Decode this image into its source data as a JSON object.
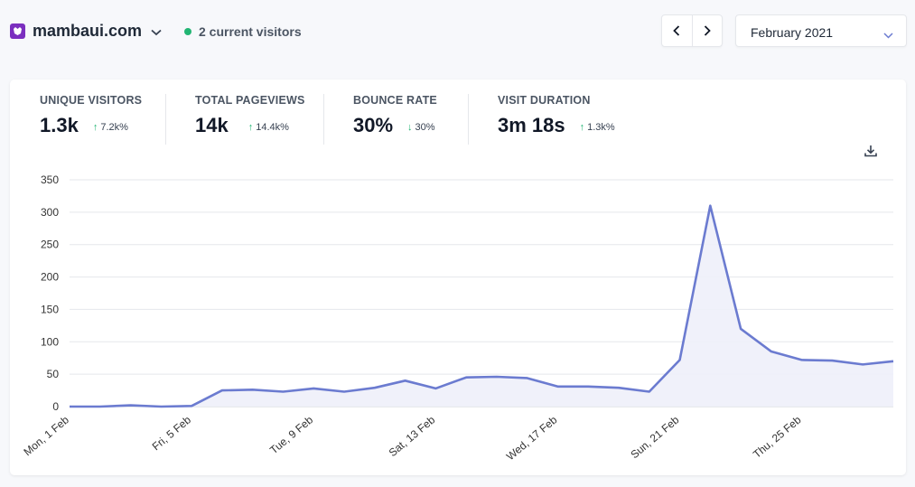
{
  "header": {
    "site_name": "mambaui.com",
    "current_visitors": "2 current visitors",
    "date_range": "February 2021"
  },
  "stats": [
    {
      "label": "UNIQUE VISITORS",
      "value": "1.3k",
      "change": "7.2k%",
      "direction": "up"
    },
    {
      "label": "TOTAL PAGEVIEWS",
      "value": "14k",
      "change": "14.4k%",
      "direction": "up"
    },
    {
      "label": "BOUNCE RATE",
      "value": "30%",
      "change": "30%",
      "direction": "down"
    },
    {
      "label": "VISIT DURATION",
      "value": "3m 18s",
      "change": "1.3k%",
      "direction": "up"
    }
  ],
  "colors": {
    "accent": "#6b7bd0",
    "fill": "#eef0fa",
    "positive": "#22b573",
    "brand": "#7b2fbf"
  },
  "icons": [
    "logo-icon",
    "chevron-down-icon",
    "chevron-left-icon",
    "chevron-right-icon",
    "download-icon"
  ],
  "chart_data": {
    "type": "area",
    "title": "",
    "xlabel": "",
    "ylabel": "",
    "ylim": [
      0,
      350
    ],
    "yticks": [
      0,
      50,
      100,
      150,
      200,
      250,
      300,
      350
    ],
    "x": [
      "1 Feb",
      "2 Feb",
      "3 Feb",
      "4 Feb",
      "5 Feb",
      "6 Feb",
      "7 Feb",
      "8 Feb",
      "9 Feb",
      "10 Feb",
      "11 Feb",
      "12 Feb",
      "13 Feb",
      "14 Feb",
      "15 Feb",
      "16 Feb",
      "17 Feb",
      "18 Feb",
      "19 Feb",
      "20 Feb",
      "21 Feb",
      "22 Feb",
      "23 Feb",
      "24 Feb",
      "25 Feb",
      "26 Feb",
      "27 Feb",
      "28 Feb"
    ],
    "xtick_labels": [
      {
        "index": 0,
        "label": "Mon, 1 Feb"
      },
      {
        "index": 4,
        "label": "Fri, 5 Feb"
      },
      {
        "index": 8,
        "label": "Tue, 9 Feb"
      },
      {
        "index": 12,
        "label": "Sat, 13 Feb"
      },
      {
        "index": 16,
        "label": "Wed, 17 Feb"
      },
      {
        "index": 20,
        "label": "Sun, 21 Feb"
      },
      {
        "index": 24,
        "label": "Thu, 25 Feb"
      }
    ],
    "series": [
      {
        "name": "Visitors",
        "values": [
          0,
          0,
          2,
          0,
          1,
          25,
          26,
          23,
          28,
          23,
          29,
          40,
          28,
          45,
          46,
          44,
          31,
          31,
          29,
          23,
          72,
          310,
          120,
          85,
          72,
          71,
          65,
          70
        ]
      }
    ],
    "grid": true
  }
}
